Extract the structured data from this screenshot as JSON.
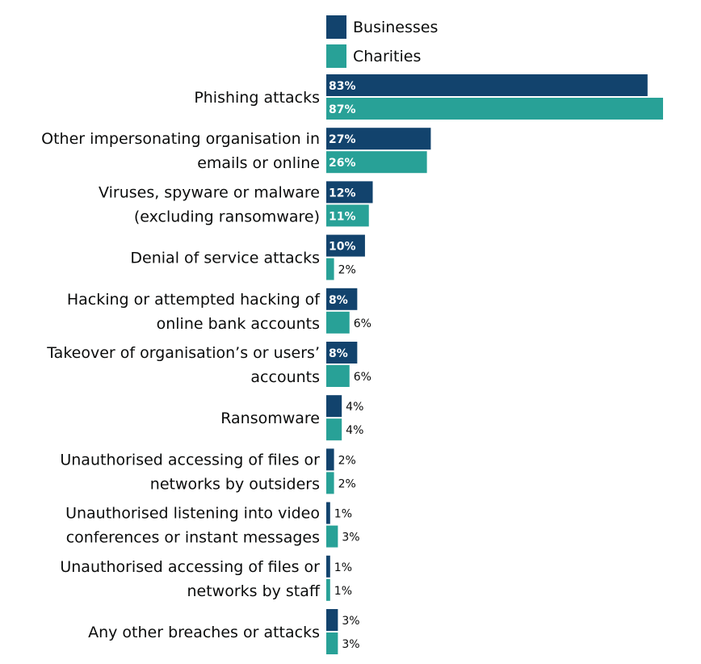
{
  "chart_data": {
    "type": "bar",
    "orientation": "horizontal",
    "legend_position": "top",
    "grid": false,
    "xlim": [
      0,
      100
    ],
    "categories": [
      [
        "Phishing attacks"
      ],
      [
        "Other impersonating organisation in",
        "emails or online"
      ],
      [
        "Viruses, spyware or malware",
        "(excluding ransomware)"
      ],
      [
        "Denial of service attacks"
      ],
      [
        "Hacking or attempted hacking of",
        "online bank accounts"
      ],
      [
        "Takeover of organisation’s or users’",
        "accounts"
      ],
      [
        "Ransomware"
      ],
      [
        "Unauthorised accessing of files or",
        "networks by outsiders"
      ],
      [
        "Unauthorised listening into video",
        "conferences or instant messages"
      ],
      [
        "Unauthorised accessing of files or",
        "networks by staff"
      ],
      [
        "Any other breaches or attacks"
      ]
    ],
    "series": [
      {
        "name": "Businesses",
        "color": "#12436d",
        "values": [
          83,
          27,
          12,
          10,
          8,
          8,
          4,
          2,
          1,
          1,
          3
        ],
        "labels": [
          "83%",
          "27%",
          "12%",
          "10%",
          "8%",
          "8%",
          "4%",
          "2%",
          "1%",
          "1%",
          "3%"
        ]
      },
      {
        "name": "Charities",
        "color": "#28a197",
        "values": [
          87,
          26,
          11,
          2,
          6,
          6,
          4,
          2,
          3,
          1,
          3
        ],
        "labels": [
          "87%",
          "26%",
          "11%",
          "2%",
          "6%",
          "6%",
          "4%",
          "2%",
          "3%",
          "1%",
          "3%"
        ]
      }
    ]
  }
}
